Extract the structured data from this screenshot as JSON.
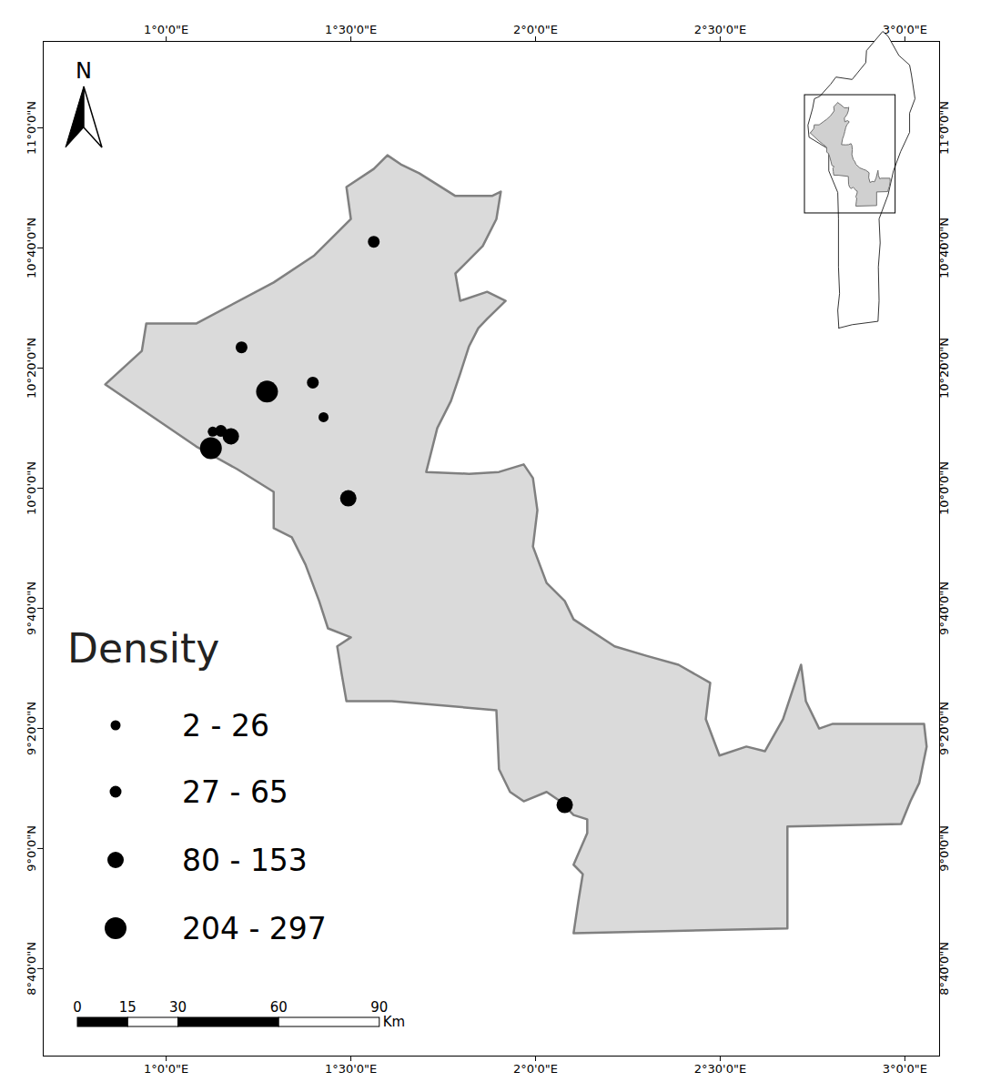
{
  "chart_data": {
    "type": "map",
    "xlim": [
      0.667,
      3.094
    ],
    "ylim": [
      8.424,
      11.24
    ],
    "xticks": [
      {
        "value": 1,
        "label": "1°0'0\"E"
      },
      {
        "value": 1.5,
        "label": "1°30'0\"E"
      },
      {
        "value": 2,
        "label": "2°0'0\"E"
      },
      {
        "value": 2.5,
        "label": "2°30'0\"E"
      },
      {
        "value": 3,
        "label": "3°0'0\"E"
      }
    ],
    "yticks": [
      {
        "value": 8.6667,
        "label": "8°40'0\"N"
      },
      {
        "value": 9,
        "label": "9°0'0\"N"
      },
      {
        "value": 9.3333,
        "label": "9°20'0\"N"
      },
      {
        "value": 9.6667,
        "label": "9°40'0\"N"
      },
      {
        "value": 10,
        "label": "10°0'0\"N"
      },
      {
        "value": 10.3333,
        "label": "10°20'0\"N"
      },
      {
        "value": 10.6667,
        "label": "10°40'0\"N"
      },
      {
        "value": 11,
        "label": "11°0'0\"N"
      }
    ],
    "region": {
      "lon": [
        0.835,
        0.934,
        0.946,
        1.081,
        1.291,
        1.401,
        1.5,
        1.488,
        1.562,
        1.599,
        1.635,
        1.685,
        1.783,
        1.882,
        1.906,
        1.894,
        1.857,
        1.783,
        1.796,
        1.869,
        1.919,
        1.869,
        1.845,
        1.82,
        1.796,
        1.771,
        1.734,
        1.704,
        1.82,
        1.901,
        1.968,
        1.993,
        2.005,
        1.993,
        2.03,
        2.079,
        2.103,
        2.214,
        2.3,
        2.387,
        2.473,
        2.461,
        2.498,
        2.571,
        2.621,
        2.67,
        2.719,
        2.732,
        2.768,
        2.805,
        3.052,
        3.059,
        3.039,
        3.015,
        2.99,
        2.682,
        2.682,
        2.103,
        2.116,
        2.128,
        2.103,
        2.14,
        2.14,
        2.103,
        2.067,
        2.03,
        1.968,
        1.931,
        1.901,
        1.894,
        1.611,
        1.488,
        1.475,
        1.463,
        1.5,
        1.438,
        1.414,
        1.377,
        1.34,
        1.291,
        1.291,
        1.192,
        1.081
      ],
      "lat": [
        10.288,
        10.381,
        10.457,
        10.457,
        10.571,
        10.646,
        10.747,
        10.836,
        10.886,
        10.924,
        10.899,
        10.874,
        10.811,
        10.811,
        10.823,
        10.747,
        10.672,
        10.596,
        10.52,
        10.545,
        10.52,
        10.47,
        10.444,
        10.394,
        10.318,
        10.242,
        10.167,
        10.045,
        10.04,
        10.045,
        10.066,
        10.028,
        9.939,
        9.838,
        9.737,
        9.687,
        9.636,
        9.561,
        9.535,
        9.51,
        9.46,
        9.359,
        9.258,
        9.283,
        9.27,
        9.359,
        9.51,
        9.409,
        9.333,
        9.346,
        9.346,
        9.283,
        9.182,
        9.131,
        9.068,
        9.061,
        8.778,
        8.765,
        8.854,
        8.929,
        8.955,
        9.043,
        9.081,
        9.093,
        9.131,
        9.157,
        9.131,
        9.157,
        9.22,
        9.384,
        9.409,
        9.409,
        9.485,
        9.561,
        9.586,
        9.611,
        9.687,
        9.788,
        9.864,
        9.889,
        9.99,
        10.053,
        10.116
      ]
    },
    "points": {
      "lon": [
        1.562,
        1.204,
        1.397,
        1.426,
        1.273,
        1.121,
        1.175,
        1.148,
        1.126,
        1.493,
        2.079
      ],
      "lat": [
        10.684,
        10.391,
        10.293,
        10.197,
        10.268,
        10.111,
        10.144,
        10.159,
        10.157,
        9.972,
        9.121
      ],
      "density_class": [
        "27 - 65",
        "27 - 65",
        "27 - 65",
        "2 - 26",
        "204 - 297",
        "204 - 297",
        "80 - 153",
        "27 - 65",
        "2 - 26",
        "80 - 153",
        "80 - 153"
      ]
    },
    "legend_title": "Density",
    "density_classes": [
      "2 - 26",
      "27 - 65",
      "80 - 153",
      "204 - 297"
    ],
    "north_label": "N",
    "scale_bar": {
      "ticks": [
        0,
        15,
        30,
        60,
        90
      ],
      "unit": "Km"
    },
    "inset": {
      "lon": [
        1.63,
        2.0,
        2.72,
        2.75,
        2.73,
        2.78,
        2.75,
        3.0,
        3.15,
        3.35,
        3.6,
        3.6,
        3.75,
        3.65,
        3.6,
        3.3,
        3.0,
        2.85,
        2.4,
        2.38,
        2.0,
        1.55,
        1.4,
        1.1,
        0.95,
        0.9,
        0.77,
        0.8,
        1.35,
        1.35,
        1.6,
        1.62,
        1.62,
        1.65,
        1.6
      ],
      "lat": [
        6.23,
        6.3,
        6.37,
        6.8,
        7.5,
        8.0,
        8.5,
        9.0,
        9.5,
        9.9,
        10.3,
        10.7,
        11.0,
        11.5,
        11.7,
        11.9,
        12.3,
        12.4,
        12.0,
        11.75,
        11.4,
        11.45,
        11.3,
        11.05,
        11.0,
        10.8,
        10.45,
        10.2,
        9.95,
        9.5,
        9.05,
        8.5,
        7.5,
        6.95,
        6.6
      ]
    }
  }
}
